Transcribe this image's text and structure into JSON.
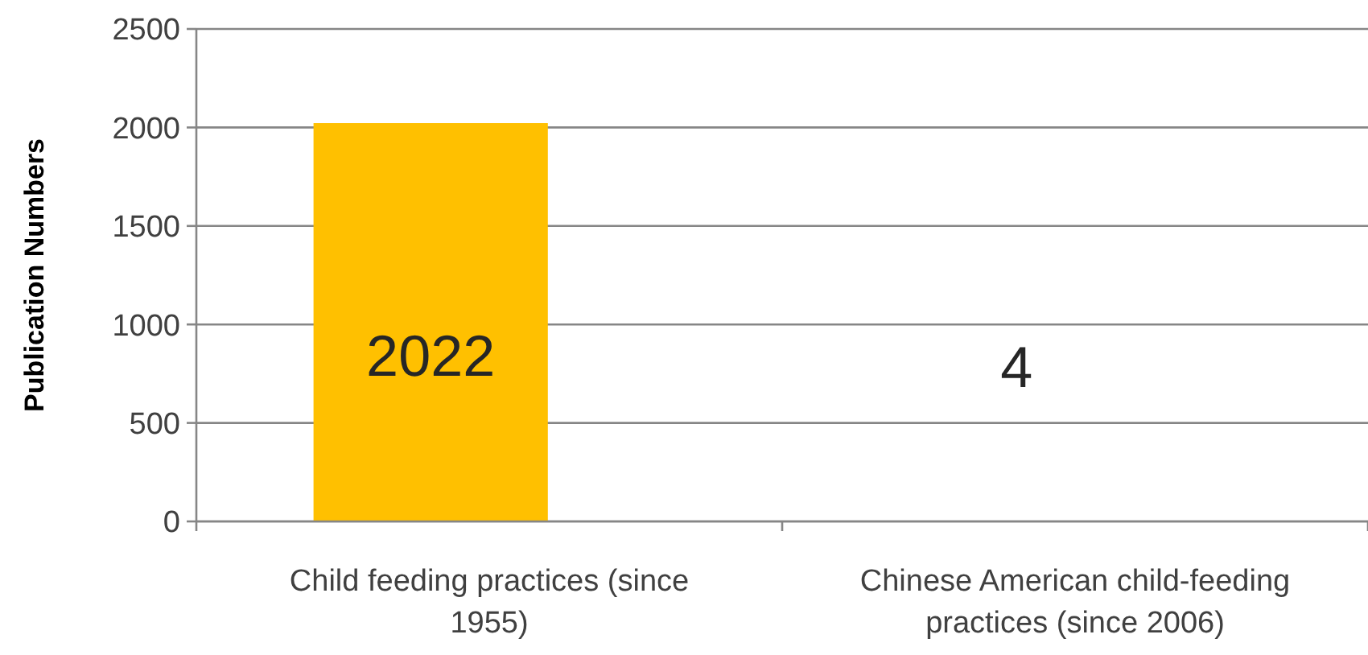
{
  "chart_data": {
    "type": "bar",
    "ylabel": "Publication Numbers",
    "categories": [
      "Child feeding practices (since 1955)",
      "Chinese American child-feeding practices (since 2006)"
    ],
    "values": [
      2022,
      4
    ],
    "color": "#ffc000",
    "ylim": [
      0,
      2500
    ],
    "yticks": [
      0,
      500,
      1000,
      1500,
      2000,
      2500
    ],
    "grid": "y",
    "data_labels": true
  }
}
